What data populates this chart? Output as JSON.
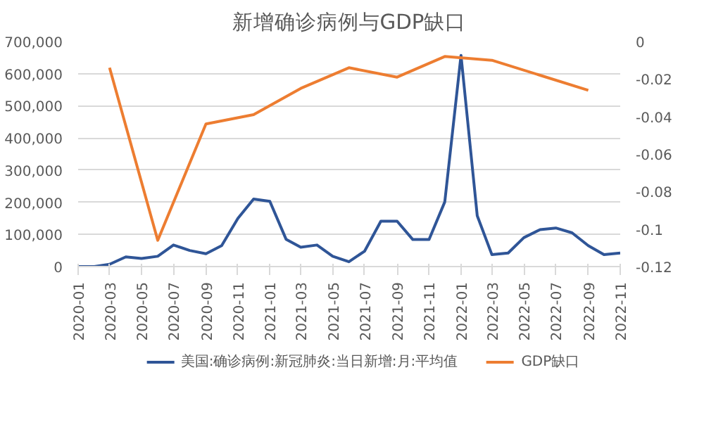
{
  "chart_data": {
    "type": "line",
    "title": "新增确诊病例与GDP缺口",
    "x": [
      "2020-01",
      "2020-02",
      "2020-03",
      "2020-04",
      "2020-05",
      "2020-06",
      "2020-07",
      "2020-08",
      "2020-09",
      "2020-10",
      "2020-11",
      "2020-12",
      "2021-01",
      "2021-02",
      "2021-03",
      "2021-04",
      "2021-05",
      "2021-06",
      "2021-07",
      "2021-08",
      "2021-09",
      "2021-10",
      "2021-11",
      "2021-12",
      "2022-01",
      "2022-02",
      "2022-03",
      "2022-04",
      "2022-05",
      "2022-06",
      "2022-07",
      "2022-08",
      "2022-09",
      "2022-10",
      "2022-11"
    ],
    "series": [
      {
        "name": "美国:确诊病例:新冠肺炎:当日新增:月:平均值",
        "color": "#2f5597",
        "values": [
          0,
          0,
          7000,
          30000,
          25000,
          32000,
          67000,
          50000,
          40000,
          65000,
          150000,
          210000,
          203000,
          85000,
          60000,
          67000,
          32000,
          15000,
          48000,
          141000,
          141000,
          84000,
          84000,
          201000,
          657000,
          158000,
          37000,
          42000,
          90000,
          115000,
          120000,
          105000,
          65000,
          37000,
          42000
        ]
      },
      {
        "name": "GDP缺口",
        "color": "#ed7d31",
        "axis": "y2",
        "x": [
          "2020-03",
          "2020-06",
          "2020-09",
          "2020-12",
          "2021-03",
          "2021-06",
          "2021-09",
          "2021-12",
          "2022-03",
          "2022-06",
          "2022-09"
        ],
        "values": [
          -0.014,
          -0.106,
          -0.044,
          -0.039,
          -0.025,
          -0.014,
          -0.019,
          -0.008,
          -0.01,
          -0.018,
          -0.026
        ]
      }
    ],
    "xlim": [
      "2020-01",
      "2022-11"
    ],
    "xticks": [
      "2020-01",
      "2020-03",
      "2020-05",
      "2020-07",
      "2020-09",
      "2020-11",
      "2021-01",
      "2021-03",
      "2021-05",
      "2021-07",
      "2021-09",
      "2021-11",
      "2022-01",
      "2022-03",
      "2022-05",
      "2022-07",
      "2022-09",
      "2022-11"
    ],
    "ylim": [
      0,
      700000
    ],
    "yticks": [
      0,
      {
        "value": 100000,
        "label": "100,000"
      },
      {
        "value": 200000,
        "label": "200,000"
      },
      {
        "value": 300000,
        "label": "300,000"
      },
      {
        "value": 400000,
        "label": "400,000"
      },
      {
        "value": 500000,
        "label": "500,000"
      },
      {
        "value": 600000,
        "label": "600,000"
      },
      {
        "value": 700000,
        "label": "700,000"
      }
    ],
    "y2lim": [
      -0.12,
      0
    ],
    "y2ticks": [
      -0.12,
      -0.1,
      -0.08,
      -0.06,
      -0.04,
      -0.02,
      0
    ],
    "grid": "y",
    "legend": "bottom",
    "line_style": "solid"
  }
}
